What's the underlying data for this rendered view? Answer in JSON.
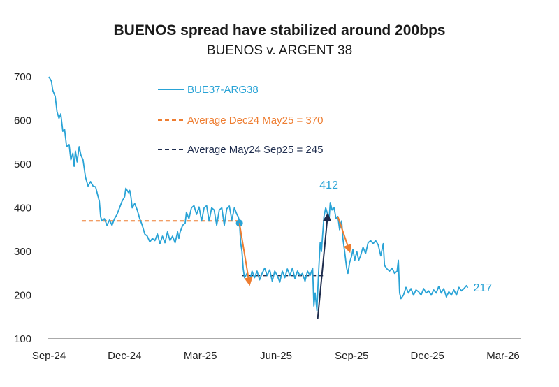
{
  "chart_data": {
    "type": "line",
    "title": "BUENOS spread have stabilized around 200bps",
    "subtitle": "BUENOS v. ARGENT 38",
    "xlabel": "",
    "ylabel": "",
    "x_ticks": [
      "Sep-24",
      "Dec-24",
      "Mar-25",
      "Jun-25",
      "Sep-25",
      "Dec-25",
      "Mar-26"
    ],
    "y_ticks": [
      100,
      200,
      300,
      400,
      500,
      600,
      700
    ],
    "ylim": [
      100,
      700
    ],
    "x_range_months": [
      0,
      18
    ],
    "series": [
      {
        "name": "BUE37-ARG38",
        "color": "#29a3d6",
        "points": [
          [
            0.0,
            700
          ],
          [
            0.1,
            690
          ],
          [
            0.15,
            670
          ],
          [
            0.25,
            655
          ],
          [
            0.32,
            620
          ],
          [
            0.4,
            605
          ],
          [
            0.47,
            615
          ],
          [
            0.55,
            575
          ],
          [
            0.62,
            580
          ],
          [
            0.7,
            540
          ],
          [
            0.8,
            545
          ],
          [
            0.87,
            510
          ],
          [
            0.95,
            525
          ],
          [
            1.0,
            495
          ],
          [
            1.05,
            530
          ],
          [
            1.12,
            505
          ],
          [
            1.2,
            540
          ],
          [
            1.27,
            520
          ],
          [
            1.35,
            510
          ],
          [
            1.45,
            470
          ],
          [
            1.55,
            450
          ],
          [
            1.65,
            460
          ],
          [
            1.75,
            450
          ],
          [
            1.85,
            448
          ],
          [
            1.93,
            430
          ],
          [
            2.0,
            415
          ],
          [
            2.05,
            380
          ],
          [
            2.1,
            370
          ],
          [
            2.2,
            375
          ],
          [
            2.3,
            360
          ],
          [
            2.4,
            372
          ],
          [
            2.5,
            360
          ],
          [
            2.6,
            375
          ],
          [
            2.7,
            385
          ],
          [
            2.8,
            400
          ],
          [
            2.9,
            415
          ],
          [
            3.0,
            425
          ],
          [
            3.05,
            445
          ],
          [
            3.15,
            435
          ],
          [
            3.2,
            440
          ],
          [
            3.25,
            425
          ],
          [
            3.3,
            400
          ],
          [
            3.4,
            410
          ],
          [
            3.5,
            395
          ],
          [
            3.6,
            375
          ],
          [
            3.7,
            360
          ],
          [
            3.8,
            340
          ],
          [
            3.9,
            335
          ],
          [
            4.0,
            322
          ],
          [
            4.1,
            330
          ],
          [
            4.2,
            325
          ],
          [
            4.3,
            340
          ],
          [
            4.4,
            318
          ],
          [
            4.5,
            335
          ],
          [
            4.6,
            320
          ],
          [
            4.7,
            345
          ],
          [
            4.8,
            325
          ],
          [
            4.9,
            335
          ],
          [
            5.0,
            320
          ],
          [
            5.1,
            345
          ],
          [
            5.15,
            330
          ],
          [
            5.2,
            345
          ],
          [
            5.3,
            360
          ],
          [
            5.4,
            365
          ],
          [
            5.45,
            390
          ],
          [
            5.55,
            375
          ],
          [
            5.65,
            400
          ],
          [
            5.75,
            405
          ],
          [
            5.85,
            385
          ],
          [
            5.95,
            402
          ],
          [
            6.05,
            370
          ],
          [
            6.15,
            400
          ],
          [
            6.25,
            405
          ],
          [
            6.35,
            370
          ],
          [
            6.45,
            400
          ],
          [
            6.55,
            395
          ],
          [
            6.65,
            360
          ],
          [
            6.75,
            395
          ],
          [
            6.85,
            400
          ],
          [
            6.95,
            360
          ],
          [
            7.05,
            398
          ],
          [
            7.15,
            404
          ],
          [
            7.25,
            372
          ],
          [
            7.35,
            400
          ],
          [
            7.45,
            385
          ],
          [
            7.5,
            380
          ],
          [
            7.55,
            370
          ],
          [
            7.6,
            320
          ],
          [
            7.65,
            300
          ],
          [
            7.7,
            260
          ],
          [
            7.75,
            240
          ],
          [
            7.85,
            250
          ],
          [
            7.95,
            230
          ],
          [
            8.05,
            255
          ],
          [
            8.15,
            240
          ],
          [
            8.25,
            255
          ],
          [
            8.35,
            235
          ],
          [
            8.45,
            250
          ],
          [
            8.55,
            262
          ],
          [
            8.65,
            245
          ],
          [
            8.75,
            258
          ],
          [
            8.85,
            232
          ],
          [
            8.95,
            255
          ],
          [
            9.05,
            245
          ],
          [
            9.15,
            230
          ],
          [
            9.25,
            255
          ],
          [
            9.35,
            240
          ],
          [
            9.45,
            260
          ],
          [
            9.55,
            245
          ],
          [
            9.65,
            262
          ],
          [
            9.75,
            238
          ],
          [
            9.85,
            255
          ],
          [
            9.95,
            245
          ],
          [
            10.05,
            250
          ],
          [
            10.15,
            232
          ],
          [
            10.25,
            255
          ],
          [
            10.35,
            245
          ],
          [
            10.45,
            262
          ],
          [
            10.5,
            175
          ],
          [
            10.55,
            205
          ],
          [
            10.62,
            165
          ],
          [
            10.68,
            245
          ],
          [
            10.75,
            320
          ],
          [
            10.8,
            300
          ],
          [
            10.85,
            340
          ],
          [
            10.9,
            380
          ],
          [
            10.97,
            400
          ],
          [
            11.05,
            385
          ],
          [
            11.1,
            370
          ],
          [
            11.15,
            412
          ],
          [
            11.22,
            395
          ],
          [
            11.3,
            400
          ],
          [
            11.38,
            375
          ],
          [
            11.45,
            380
          ],
          [
            11.52,
            350
          ],
          [
            11.6,
            370
          ],
          [
            11.65,
            330
          ],
          [
            11.72,
            300
          ],
          [
            11.8,
            262
          ],
          [
            11.85,
            250
          ],
          [
            11.92,
            275
          ],
          [
            12.0,
            290
          ],
          [
            12.05,
            305
          ],
          [
            12.12,
            280
          ],
          [
            12.2,
            300
          ],
          [
            12.28,
            280
          ],
          [
            12.35,
            290
          ],
          [
            12.45,
            310
          ],
          [
            12.55,
            295
          ],
          [
            12.65,
            320
          ],
          [
            12.75,
            325
          ],
          [
            12.85,
            318
          ],
          [
            12.95,
            325
          ],
          [
            13.05,
            315
          ],
          [
            13.15,
            290
          ],
          [
            13.25,
            318
          ],
          [
            13.3,
            268
          ],
          [
            13.4,
            260
          ],
          [
            13.5,
            255
          ],
          [
            13.6,
            262
          ],
          [
            13.7,
            250
          ],
          [
            13.8,
            255
          ],
          [
            13.85,
            280
          ],
          [
            13.9,
            205
          ],
          [
            13.95,
            192
          ],
          [
            14.05,
            200
          ],
          [
            14.15,
            218
          ],
          [
            14.25,
            205
          ],
          [
            14.35,
            215
          ],
          [
            14.45,
            200
          ],
          [
            14.55,
            212
          ],
          [
            14.65,
            208
          ],
          [
            14.75,
            200
          ],
          [
            14.85,
            215
          ],
          [
            14.95,
            205
          ],
          [
            15.05,
            210
          ],
          [
            15.15,
            200
          ],
          [
            15.25,
            212
          ],
          [
            15.35,
            205
          ],
          [
            15.45,
            220
          ],
          [
            15.55,
            205
          ],
          [
            15.65,
            215
          ],
          [
            15.75,
            196
          ],
          [
            15.85,
            208
          ],
          [
            15.95,
            200
          ],
          [
            16.05,
            212
          ],
          [
            16.15,
            200
          ],
          [
            16.25,
            218
          ],
          [
            16.35,
            210
          ],
          [
            16.45,
            215
          ],
          [
            16.55,
            222
          ],
          [
            16.6,
            217
          ]
        ]
      }
    ],
    "reference_lines": [
      {
        "name": "Average Dec24 May25 = 370",
        "value": 370,
        "x_start": 1.3,
        "x_end": 7.55,
        "color": "#ee7d31",
        "style": "dashed"
      },
      {
        "name": "Average May24 Sep25 = 245",
        "value": 245,
        "x_start": 7.65,
        "x_end": 10.9,
        "color": "#1f2d4e",
        "style": "dashed"
      }
    ],
    "markers": [
      {
        "x": 7.55,
        "y": 365,
        "color": "#29a3d6"
      }
    ],
    "arrows": [
      {
        "from": [
          7.55,
          365
        ],
        "to": [
          7.95,
          225
        ],
        "color": "#ee7d31"
      },
      {
        "from": [
          10.65,
          145
        ],
        "to": [
          11.05,
          385
        ],
        "color": "#1f2d4e"
      },
      {
        "from": [
          11.45,
          380
        ],
        "to": [
          11.92,
          300
        ],
        "color": "#ee7d31"
      }
    ],
    "annotations": [
      {
        "text": "412",
        "x": 11.15,
        "y": 412,
        "color": "#29a3d6"
      },
      {
        "text": "217",
        "x": 16.6,
        "y": 217,
        "color": "#29a3d6"
      }
    ],
    "legend": [
      {
        "label": "BUE37-ARG38",
        "color": "#29a3d6",
        "style": "solid"
      },
      {
        "label": "Average Dec24 May25 = 370",
        "color": "#ee7d31",
        "style": "dashed"
      },
      {
        "label": "Average May24 Sep25 = 245",
        "color": "#1f2d4e",
        "style": "dashed"
      }
    ]
  }
}
